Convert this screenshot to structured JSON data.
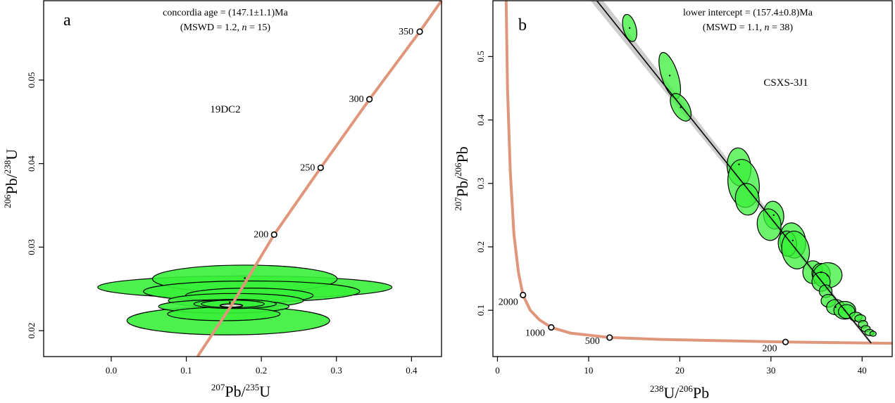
{
  "chart_data": [
    {
      "type": "scatter",
      "subtype": "concordia-diagram",
      "panel_label": "a",
      "sample": "19DC2",
      "xlabel": {
        "sup1": "207",
        "el1": "Pb/",
        "sup2": "235",
        "el2": "U"
      },
      "ylabel": {
        "sup1": "206",
        "el1": "Pb/",
        "sup2": "238",
        "el2": "U"
      },
      "xlim": [
        -0.09,
        0.44
      ],
      "ylim": [
        0.0169,
        0.0595
      ],
      "xticks": [
        "0.0",
        "0.1",
        "0.2",
        "0.3",
        "0.4"
      ],
      "xtick_values": [
        0.0,
        0.1,
        0.2,
        0.3,
        0.4
      ],
      "yticks": [
        "0.02",
        "0.03",
        "0.04",
        "0.05"
      ],
      "ytick_values": [
        0.02,
        0.03,
        0.04,
        0.05
      ],
      "annotation_line1": "concordia age = (147.1±1.1)Ma",
      "annotation_line2_pre": "(MSWD = 1.2, ",
      "annotation_line2_n": "n",
      "annotation_line2_post": " = 15)",
      "concordia_ages": [
        {
          "label": "200",
          "x": 0.217,
          "y": 0.0315
        },
        {
          "label": "250",
          "x": 0.279,
          "y": 0.0395
        },
        {
          "label": "300",
          "x": 0.344,
          "y": 0.0477
        },
        {
          "label": "350",
          "x": 0.411,
          "y": 0.0558
        }
      ],
      "concordia_curve": [
        [
          0.115,
          0.0169
        ],
        [
          0.16,
          0.023
        ],
        [
          0.217,
          0.0315
        ],
        [
          0.279,
          0.0395
        ],
        [
          0.344,
          0.0477
        ],
        [
          0.411,
          0.0558
        ],
        [
          0.44,
          0.0595
        ]
      ],
      "ellipses": [
        {
          "x": 0.178,
          "y": 0.0252,
          "rx": 0.196,
          "ry": 0.00135
        },
        {
          "x": 0.156,
          "y": 0.0212,
          "rx": 0.135,
          "ry": 0.0017
        },
        {
          "x": 0.178,
          "y": 0.0262,
          "rx": 0.123,
          "ry": 0.00165
        },
        {
          "x": 0.187,
          "y": 0.0247,
          "rx": 0.144,
          "ry": 0.00125
        },
        {
          "x": 0.184,
          "y": 0.0242,
          "rx": 0.085,
          "ry": 0.0009
        },
        {
          "x": 0.166,
          "y": 0.0236,
          "rx": 0.09,
          "ry": 0.00085
        },
        {
          "x": 0.15,
          "y": 0.0229,
          "rx": 0.087,
          "ry": 0.0008
        },
        {
          "x": 0.15,
          "y": 0.022,
          "rx": 0.075,
          "ry": 0.0008
        },
        {
          "x": 0.165,
          "y": 0.0232,
          "rx": 0.055,
          "ry": 0.00055
        },
        {
          "x": 0.162,
          "y": 0.0232,
          "rx": 0.042,
          "ry": 0.00045
        }
      ],
      "concordia_age_ellipse": {
        "x": 0.16,
        "y": 0.023,
        "rx": 0.015,
        "ry": 0.0002
      },
      "points": [
        [
          0.178,
          0.0263
        ],
        [
          0.162,
          0.0237
        ],
        [
          0.158,
          0.0234
        ]
      ]
    },
    {
      "type": "scatter",
      "subtype": "tera-wasserburg-diagram",
      "panel_label": "b",
      "sample": "CSXS-3J1",
      "xlabel": {
        "sup1": "238",
        "el1": "U/",
        "sup2": "206",
        "el2": "Pb"
      },
      "ylabel": {
        "sup1": "207",
        "el1": "Pb/",
        "sup2": "206",
        "el2": "Pb"
      },
      "xlim": [
        -0.5,
        43.3
      ],
      "ylim": [
        0.027,
        0.588
      ],
      "xticks": [
        "0",
        "10",
        "20",
        "30",
        "40"
      ],
      "xtick_values": [
        0,
        10,
        20,
        30,
        40
      ],
      "yticks": [
        "0.1",
        "0.2",
        "0.3",
        "0.4",
        "0.5"
      ],
      "ytick_values": [
        0.1,
        0.2,
        0.3,
        0.4,
        0.5
      ],
      "annotation_line1": "lower intercept = (157.4±0.8)Ma",
      "annotation_line2_pre": "(MSWD = 1.1, ",
      "annotation_line2_n": "n",
      "annotation_line2_post": " = 38)",
      "concordia_ages": [
        {
          "label": "2000",
          "x": 2.8,
          "y": 0.124
        },
        {
          "label": "1000",
          "x": 5.9,
          "y": 0.073
        },
        {
          "label": "500",
          "x": 12.3,
          "y": 0.057
        },
        {
          "label": "200",
          "x": 31.6,
          "y": 0.05
        }
      ],
      "concordia_curve": [
        [
          0.95,
          0.588
        ],
        [
          1.1,
          0.45
        ],
        [
          1.4,
          0.32
        ],
        [
          1.8,
          0.22
        ],
        [
          2.3,
          0.16
        ],
        [
          2.8,
          0.124
        ],
        [
          3.6,
          0.1
        ],
        [
          4.6,
          0.085
        ],
        [
          5.9,
          0.073
        ],
        [
          8.0,
          0.064
        ],
        [
          12.3,
          0.057
        ],
        [
          18,
          0.054
        ],
        [
          25,
          0.052
        ],
        [
          31.6,
          0.05
        ],
        [
          43.3,
          0.048
        ]
      ],
      "regression_line": [
        [
          10.9,
          0.588
        ],
        [
          41.0,
          0.048
        ]
      ],
      "ellipses": [
        {
          "x": 14.5,
          "y": 0.545,
          "rx": 0.7,
          "ry": 0.022,
          "angle": -15
        },
        {
          "x": 18.9,
          "y": 0.47,
          "rx": 0.9,
          "ry": 0.038,
          "angle": -18
        },
        {
          "x": 20.1,
          "y": 0.42,
          "rx": 0.9,
          "ry": 0.024,
          "angle": -30
        },
        {
          "x": 26.5,
          "y": 0.326,
          "rx": 1.3,
          "ry": 0.03,
          "angle": -5
        },
        {
          "x": 27.0,
          "y": 0.3,
          "rx": 1.7,
          "ry": 0.038,
          "angle": -8
        },
        {
          "x": 27.4,
          "y": 0.275,
          "rx": 1.3,
          "ry": 0.025,
          "angle": -5
        },
        {
          "x": 30.3,
          "y": 0.25,
          "rx": 1.1,
          "ry": 0.022,
          "angle": -8
        },
        {
          "x": 29.8,
          "y": 0.235,
          "rx": 1.3,
          "ry": 0.025,
          "angle": -8
        },
        {
          "x": 32.4,
          "y": 0.21,
          "rx": 1.4,
          "ry": 0.028,
          "angle": -10
        },
        {
          "x": 31.8,
          "y": 0.205,
          "rx": 1.0,
          "ry": 0.02,
          "angle": -5
        },
        {
          "x": 32.7,
          "y": 0.195,
          "rx": 1.5,
          "ry": 0.03,
          "angle": -10
        },
        {
          "x": 34.6,
          "y": 0.16,
          "rx": 1.1,
          "ry": 0.018,
          "angle": 0
        },
        {
          "x": 35.5,
          "y": 0.158,
          "rx": 1.0,
          "ry": 0.016,
          "angle": -8
        },
        {
          "x": 36.2,
          "y": 0.155,
          "rx": 1.6,
          "ry": 0.02,
          "angle": -5
        },
        {
          "x": 35.5,
          "y": 0.145,
          "rx": 1.0,
          "ry": 0.015,
          "angle": -5
        },
        {
          "x": 36.0,
          "y": 0.13,
          "rx": 0.7,
          "ry": 0.01,
          "angle": 0
        },
        {
          "x": 36.3,
          "y": 0.115,
          "rx": 0.8,
          "ry": 0.01,
          "angle": 0
        },
        {
          "x": 37.1,
          "y": 0.105,
          "rx": 1.0,
          "ry": 0.012,
          "angle": 0
        },
        {
          "x": 38.1,
          "y": 0.1,
          "rx": 1.2,
          "ry": 0.014,
          "angle": 0
        },
        {
          "x": 38.3,
          "y": 0.098,
          "rx": 0.9,
          "ry": 0.011,
          "angle": 0
        },
        {
          "x": 39.3,
          "y": 0.09,
          "rx": 0.7,
          "ry": 0.007,
          "angle": 0
        },
        {
          "x": 39.8,
          "y": 0.087,
          "rx": 0.6,
          "ry": 0.006,
          "angle": 0
        },
        {
          "x": 40.1,
          "y": 0.078,
          "rx": 0.5,
          "ry": 0.006,
          "angle": 0
        },
        {
          "x": 40.4,
          "y": 0.071,
          "rx": 0.5,
          "ry": 0.005,
          "angle": 0
        },
        {
          "x": 40.8,
          "y": 0.065,
          "rx": 0.5,
          "ry": 0.005,
          "angle": 0
        },
        {
          "x": 41.2,
          "y": 0.063,
          "rx": 0.35,
          "ry": 0.004,
          "angle": 0
        }
      ],
      "points": [
        [
          14.5,
          0.545
        ],
        [
          18.9,
          0.47
        ],
        [
          20.1,
          0.42
        ],
        [
          26.5,
          0.33
        ],
        [
          27.0,
          0.3
        ],
        [
          30.3,
          0.25
        ],
        [
          32.4,
          0.21
        ],
        [
          35.5,
          0.16
        ],
        [
          36.2,
          0.155
        ],
        [
          37.1,
          0.105
        ],
        [
          38.1,
          0.1
        ]
      ]
    }
  ]
}
